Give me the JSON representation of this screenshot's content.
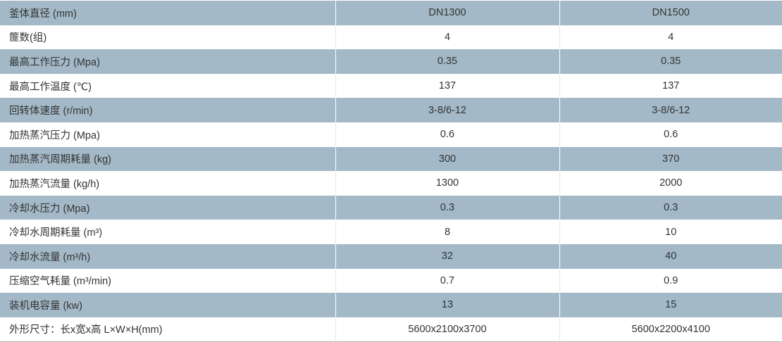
{
  "table": {
    "rows": [
      [
        "釜体直径 (mm)",
        "DN1300",
        "DN1500"
      ],
      [
        "篚数(组)",
        "4",
        "4"
      ],
      [
        "最高工作压力 (Mpa)",
        "0.35",
        "0.35"
      ],
      [
        "最高工作温度 (℃)",
        "137",
        "137"
      ],
      [
        "回转体速度 (r/min)",
        "3-8/6-12",
        "3-8/6-12"
      ],
      [
        "加热蒸汽压力 (Mpa)",
        "0.6",
        "0.6"
      ],
      [
        "加热蒸汽周期耗量 (kg)",
        "300",
        "370"
      ],
      [
        "加热蒸汽流量 (kg/h)",
        "1300",
        "2000"
      ],
      [
        "冷却水压力 (Mpa)",
        "0.3",
        "0.3"
      ],
      [
        "冷却水周期耗量 (m³)",
        "8",
        "10"
      ],
      [
        "冷却水流量 (m³/h)",
        "32",
        "40"
      ],
      [
        "压缩空气耗量 (m³/min)",
        "0.7",
        "0.9"
      ],
      [
        "装机电容量 (kw)",
        "13",
        "15"
      ],
      [
        "外形尺寸：长x宽x高 L×W×H(mm)",
        "5600x2100x3700",
        "5600x2200x4100"
      ]
    ]
  }
}
